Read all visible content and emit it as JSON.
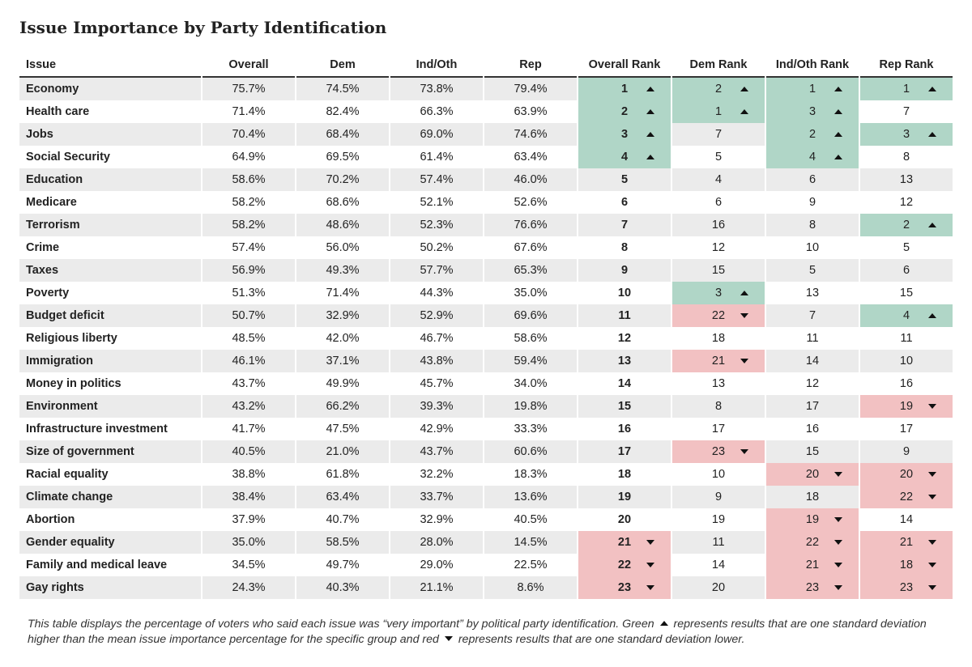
{
  "title": "Issue Importance by Party Identification",
  "chart_data": {
    "type": "table",
    "columns": [
      "Issue",
      "Overall",
      "Dem",
      "Ind/Oth",
      "Rep",
      "Overall Rank",
      "Dem Rank",
      "Ind/Oth Rank",
      "Rep Rank"
    ],
    "rows": [
      {
        "issue": "Economy",
        "overall": "75.7%",
        "dem": "74.5%",
        "ind": "73.8%",
        "rep": "79.4%",
        "overall_rank": "1",
        "dem_rank": "2",
        "ind_rank": "1",
        "rep_rank": "1",
        "flags": [
          "up",
          "up",
          "up",
          "up"
        ]
      },
      {
        "issue": "Health care",
        "overall": "71.4%",
        "dem": "82.4%",
        "ind": "66.3%",
        "rep": "63.9%",
        "overall_rank": "2",
        "dem_rank": "1",
        "ind_rank": "3",
        "rep_rank": "7",
        "flags": [
          "up",
          "up",
          "up",
          ""
        ]
      },
      {
        "issue": "Jobs",
        "overall": "70.4%",
        "dem": "68.4%",
        "ind": "69.0%",
        "rep": "74.6%",
        "overall_rank": "3",
        "dem_rank": "7",
        "ind_rank": "2",
        "rep_rank": "3",
        "flags": [
          "up",
          "",
          "up",
          "up"
        ]
      },
      {
        "issue": "Social Security",
        "overall": "64.9%",
        "dem": "69.5%",
        "ind": "61.4%",
        "rep": "63.4%",
        "overall_rank": "4",
        "dem_rank": "5",
        "ind_rank": "4",
        "rep_rank": "8",
        "flags": [
          "up",
          "",
          "up",
          ""
        ]
      },
      {
        "issue": "Education",
        "overall": "58.6%",
        "dem": "70.2%",
        "ind": "57.4%",
        "rep": "46.0%",
        "overall_rank": "5",
        "dem_rank": "4",
        "ind_rank": "6",
        "rep_rank": "13",
        "flags": [
          "",
          "",
          "",
          ""
        ]
      },
      {
        "issue": "Medicare",
        "overall": "58.2%",
        "dem": "68.6%",
        "ind": "52.1%",
        "rep": "52.6%",
        "overall_rank": "6",
        "dem_rank": "6",
        "ind_rank": "9",
        "rep_rank": "12",
        "flags": [
          "",
          "",
          "",
          ""
        ]
      },
      {
        "issue": "Terrorism",
        "overall": "58.2%",
        "dem": "48.6%",
        "ind": "52.3%",
        "rep": "76.6%",
        "overall_rank": "7",
        "dem_rank": "16",
        "ind_rank": "8",
        "rep_rank": "2",
        "flags": [
          "",
          "",
          "",
          "up"
        ]
      },
      {
        "issue": "Crime",
        "overall": "57.4%",
        "dem": "56.0%",
        "ind": "50.2%",
        "rep": "67.6%",
        "overall_rank": "8",
        "dem_rank": "12",
        "ind_rank": "10",
        "rep_rank": "5",
        "flags": [
          "",
          "",
          "",
          ""
        ]
      },
      {
        "issue": "Taxes",
        "overall": "56.9%",
        "dem": "49.3%",
        "ind": "57.7%",
        "rep": "65.3%",
        "overall_rank": "9",
        "dem_rank": "15",
        "ind_rank": "5",
        "rep_rank": "6",
        "flags": [
          "",
          "",
          "",
          ""
        ]
      },
      {
        "issue": "Poverty",
        "overall": "51.3%",
        "dem": "71.4%",
        "ind": "44.3%",
        "rep": "35.0%",
        "overall_rank": "10",
        "dem_rank": "3",
        "ind_rank": "13",
        "rep_rank": "15",
        "flags": [
          "",
          "up",
          "",
          ""
        ]
      },
      {
        "issue": "Budget deficit",
        "overall": "50.7%",
        "dem": "32.9%",
        "ind": "52.9%",
        "rep": "69.6%",
        "overall_rank": "11",
        "dem_rank": "22",
        "ind_rank": "7",
        "rep_rank": "4",
        "flags": [
          "",
          "down",
          "",
          "up"
        ]
      },
      {
        "issue": "Religious liberty",
        "overall": "48.5%",
        "dem": "42.0%",
        "ind": "46.7%",
        "rep": "58.6%",
        "overall_rank": "12",
        "dem_rank": "18",
        "ind_rank": "11",
        "rep_rank": "11",
        "flags": [
          "",
          "",
          "",
          ""
        ]
      },
      {
        "issue": "Immigration",
        "overall": "46.1%",
        "dem": "37.1%",
        "ind": "43.8%",
        "rep": "59.4%",
        "overall_rank": "13",
        "dem_rank": "21",
        "ind_rank": "14",
        "rep_rank": "10",
        "flags": [
          "",
          "down",
          "",
          ""
        ]
      },
      {
        "issue": "Money in politics",
        "overall": "43.7%",
        "dem": "49.9%",
        "ind": "45.7%",
        "rep": "34.0%",
        "overall_rank": "14",
        "dem_rank": "13",
        "ind_rank": "12",
        "rep_rank": "16",
        "flags": [
          "",
          "",
          "",
          ""
        ]
      },
      {
        "issue": "Environment",
        "overall": "43.2%",
        "dem": "66.2%",
        "ind": "39.3%",
        "rep": "19.8%",
        "overall_rank": "15",
        "dem_rank": "8",
        "ind_rank": "17",
        "rep_rank": "19",
        "flags": [
          "",
          "",
          "",
          "down"
        ]
      },
      {
        "issue": "Infrastructure investment",
        "overall": "41.7%",
        "dem": "47.5%",
        "ind": "42.9%",
        "rep": "33.3%",
        "overall_rank": "16",
        "dem_rank": "17",
        "ind_rank": "16",
        "rep_rank": "17",
        "flags": [
          "",
          "",
          "",
          ""
        ]
      },
      {
        "issue": "Size of government",
        "overall": "40.5%",
        "dem": "21.0%",
        "ind": "43.7%",
        "rep": "60.6%",
        "overall_rank": "17",
        "dem_rank": "23",
        "ind_rank": "15",
        "rep_rank": "9",
        "flags": [
          "",
          "down",
          "",
          ""
        ]
      },
      {
        "issue": "Racial equality",
        "overall": "38.8%",
        "dem": "61.8%",
        "ind": "32.2%",
        "rep": "18.3%",
        "overall_rank": "18",
        "dem_rank": "10",
        "ind_rank": "20",
        "rep_rank": "20",
        "flags": [
          "",
          "",
          "down",
          "down"
        ]
      },
      {
        "issue": "Climate change",
        "overall": "38.4%",
        "dem": "63.4%",
        "ind": "33.7%",
        "rep": "13.6%",
        "overall_rank": "19",
        "dem_rank": "9",
        "ind_rank": "18",
        "rep_rank": "22",
        "flags": [
          "",
          "",
          "",
          "down"
        ]
      },
      {
        "issue": "Abortion",
        "overall": "37.9%",
        "dem": "40.7%",
        "ind": "32.9%",
        "rep": "40.5%",
        "overall_rank": "20",
        "dem_rank": "19",
        "ind_rank": "19",
        "rep_rank": "14",
        "flags": [
          "",
          "",
          "down",
          ""
        ]
      },
      {
        "issue": "Gender equality",
        "overall": "35.0%",
        "dem": "58.5%",
        "ind": "28.0%",
        "rep": "14.5%",
        "overall_rank": "21",
        "dem_rank": "11",
        "ind_rank": "22",
        "rep_rank": "21",
        "flags": [
          "down",
          "",
          "down",
          "down"
        ]
      },
      {
        "issue": "Family and medical leave",
        "overall": "34.5%",
        "dem": "49.7%",
        "ind": "29.0%",
        "rep": "22.5%",
        "overall_rank": "22",
        "dem_rank": "14",
        "ind_rank": "21",
        "rep_rank": "18",
        "flags": [
          "down",
          "",
          "down",
          "down"
        ]
      },
      {
        "issue": "Gay rights",
        "overall": "24.3%",
        "dem": "40.3%",
        "ind": "21.1%",
        "rep": "8.6%",
        "overall_rank": "23",
        "dem_rank": "20",
        "ind_rank": "23",
        "rep_rank": "23",
        "flags": [
          "down",
          "",
          "down",
          "down"
        ]
      }
    ],
    "colors": {
      "up": "#b0d6c7",
      "down": "#f2c1c2",
      "stripe": "#ebebeb"
    }
  },
  "note": {
    "part1": "This table displays the percentage of voters who said each issue was “very important” by political party identification. Green",
    "part2": "represents results that are one standard deviation higher than the mean issue importance percentage for the specific group and red",
    "part3": "represents results that are one standard deviation lower."
  }
}
